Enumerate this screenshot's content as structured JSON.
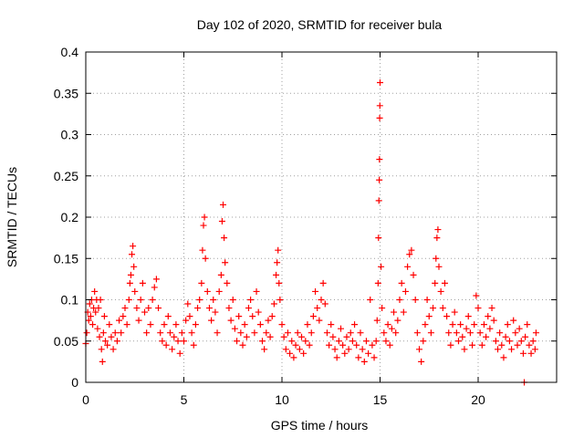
{
  "chart_data": {
    "type": "scatter",
    "title": "Day 102 of 2020, SRMTID for receiver bula",
    "xlabel": "GPS time / hours",
    "ylabel": "SRMTID / TECUs",
    "xlim": [
      0,
      24
    ],
    "ylim": [
      0,
      0.4
    ],
    "x_ticks": [
      0,
      5,
      10,
      15,
      20
    ],
    "x_tick_labels": [
      "0",
      "5",
      "10",
      "15",
      "20"
    ],
    "y_ticks": [
      0,
      0.05,
      0.1,
      0.15,
      0.2,
      0.25,
      0.3,
      0.35,
      0.4
    ],
    "y_tick_labels": [
      "0",
      "0.05",
      "0.1",
      "0.15",
      "0.2",
      "0.25",
      "0.3",
      "0.35",
      "0.4"
    ],
    "grid": true,
    "marker": "+",
    "color": "#ff0000",
    "series": [
      {
        "name": "SRMTID",
        "points": [
          [
            0.0,
            0.047
          ],
          [
            0.05,
            0.06
          ],
          [
            0.1,
            0.085
          ],
          [
            0.15,
            0.075
          ],
          [
            0.2,
            0.095
          ],
          [
            0.25,
            0.08
          ],
          [
            0.3,
            0.1
          ],
          [
            0.35,
            0.07
          ],
          [
            0.4,
            0.09
          ],
          [
            0.45,
            0.11
          ],
          [
            0.5,
            0.085
          ],
          [
            0.55,
            0.1
          ],
          [
            0.6,
            0.065
          ],
          [
            0.65,
            0.09
          ],
          [
            0.7,
            0.055
          ],
          [
            0.75,
            0.1
          ],
          [
            0.8,
            0.04
          ],
          [
            0.85,
            0.025
          ],
          [
            0.9,
            0.06
          ],
          [
            0.95,
            0.08
          ],
          [
            1.0,
            0.05
          ],
          [
            1.1,
            0.045
          ],
          [
            1.2,
            0.07
          ],
          [
            1.3,
            0.055
          ],
          [
            1.4,
            0.04
          ],
          [
            1.5,
            0.06
          ],
          [
            1.6,
            0.05
          ],
          [
            1.7,
            0.075
          ],
          [
            1.8,
            0.06
          ],
          [
            1.9,
            0.08
          ],
          [
            2.0,
            0.09
          ],
          [
            2.1,
            0.07
          ],
          [
            2.2,
            0.1
          ],
          [
            2.25,
            0.12
          ],
          [
            2.3,
            0.13
          ],
          [
            2.35,
            0.155
          ],
          [
            2.4,
            0.165
          ],
          [
            2.45,
            0.14
          ],
          [
            2.5,
            0.11
          ],
          [
            2.6,
            0.09
          ],
          [
            2.7,
            0.075
          ],
          [
            2.8,
            0.1
          ],
          [
            2.9,
            0.12
          ],
          [
            3.0,
            0.085
          ],
          [
            3.1,
            0.06
          ],
          [
            3.2,
            0.09
          ],
          [
            3.3,
            0.07
          ],
          [
            3.4,
            0.1
          ],
          [
            3.5,
            0.115
          ],
          [
            3.6,
            0.125
          ],
          [
            3.7,
            0.09
          ],
          [
            3.8,
            0.06
          ],
          [
            3.9,
            0.05
          ],
          [
            4.0,
            0.07
          ],
          [
            4.1,
            0.045
          ],
          [
            4.2,
            0.08
          ],
          [
            4.3,
            0.06
          ],
          [
            4.4,
            0.04
          ],
          [
            4.5,
            0.055
          ],
          [
            4.6,
            0.07
          ],
          [
            4.7,
            0.05
          ],
          [
            4.8,
            0.035
          ],
          [
            4.9,
            0.06
          ],
          [
            5.0,
            0.05
          ],
          [
            5.1,
            0.075
          ],
          [
            5.2,
            0.095
          ],
          [
            5.3,
            0.08
          ],
          [
            5.4,
            0.06
          ],
          [
            5.5,
            0.045
          ],
          [
            5.6,
            0.07
          ],
          [
            5.7,
            0.09
          ],
          [
            5.8,
            0.1
          ],
          [
            5.9,
            0.12
          ],
          [
            5.95,
            0.16
          ],
          [
            6.0,
            0.19
          ],
          [
            6.05,
            0.2
          ],
          [
            6.1,
            0.15
          ],
          [
            6.2,
            0.11
          ],
          [
            6.3,
            0.09
          ],
          [
            6.4,
            0.075
          ],
          [
            6.5,
            0.1
          ],
          [
            6.6,
            0.085
          ],
          [
            6.7,
            0.06
          ],
          [
            6.8,
            0.11
          ],
          [
            6.9,
            0.13
          ],
          [
            6.95,
            0.195
          ],
          [
            7.0,
            0.215
          ],
          [
            7.05,
            0.175
          ],
          [
            7.1,
            0.145
          ],
          [
            7.2,
            0.12
          ],
          [
            7.3,
            0.09
          ],
          [
            7.4,
            0.075
          ],
          [
            7.5,
            0.1
          ],
          [
            7.6,
            0.065
          ],
          [
            7.7,
            0.05
          ],
          [
            7.8,
            0.08
          ],
          [
            7.9,
            0.06
          ],
          [
            8.0,
            0.045
          ],
          [
            8.1,
            0.07
          ],
          [
            8.2,
            0.055
          ],
          [
            8.3,
            0.09
          ],
          [
            8.4,
            0.1
          ],
          [
            8.5,
            0.08
          ],
          [
            8.6,
            0.06
          ],
          [
            8.7,
            0.11
          ],
          [
            8.8,
            0.085
          ],
          [
            8.9,
            0.07
          ],
          [
            9.0,
            0.05
          ],
          [
            9.1,
            0.04
          ],
          [
            9.2,
            0.06
          ],
          [
            9.3,
            0.075
          ],
          [
            9.4,
            0.055
          ],
          [
            9.5,
            0.08
          ],
          [
            9.6,
            0.095
          ],
          [
            9.7,
            0.13
          ],
          [
            9.75,
            0.145
          ],
          [
            9.8,
            0.16
          ],
          [
            9.85,
            0.12
          ],
          [
            9.9,
            0.1
          ],
          [
            10.0,
            0.07
          ],
          [
            10.1,
            0.055
          ],
          [
            10.2,
            0.04
          ],
          [
            10.3,
            0.06
          ],
          [
            10.4,
            0.035
          ],
          [
            10.5,
            0.05
          ],
          [
            10.6,
            0.03
          ],
          [
            10.7,
            0.045
          ],
          [
            10.8,
            0.06
          ],
          [
            10.9,
            0.04
          ],
          [
            11.0,
            0.055
          ],
          [
            11.1,
            0.035
          ],
          [
            11.2,
            0.05
          ],
          [
            11.3,
            0.07
          ],
          [
            11.4,
            0.045
          ],
          [
            11.5,
            0.06
          ],
          [
            11.6,
            0.08
          ],
          [
            11.7,
            0.11
          ],
          [
            11.8,
            0.09
          ],
          [
            11.9,
            0.075
          ],
          [
            12.0,
            0.1
          ],
          [
            12.1,
            0.12
          ],
          [
            12.2,
            0.095
          ],
          [
            12.3,
            0.06
          ],
          [
            12.4,
            0.045
          ],
          [
            12.5,
            0.07
          ],
          [
            12.6,
            0.055
          ],
          [
            12.7,
            0.04
          ],
          [
            12.8,
            0.03
          ],
          [
            12.9,
            0.05
          ],
          [
            13.0,
            0.065
          ],
          [
            13.1,
            0.045
          ],
          [
            13.2,
            0.035
          ],
          [
            13.3,
            0.055
          ],
          [
            13.4,
            0.04
          ],
          [
            13.5,
            0.06
          ],
          [
            13.6,
            0.05
          ],
          [
            13.7,
            0.07
          ],
          [
            13.8,
            0.045
          ],
          [
            13.9,
            0.03
          ],
          [
            14.0,
            0.06
          ],
          [
            14.1,
            0.04
          ],
          [
            14.2,
            0.025
          ],
          [
            14.3,
            0.05
          ],
          [
            14.4,
            0.035
          ],
          [
            14.5,
            0.1
          ],
          [
            14.6,
            0.045
          ],
          [
            14.7,
            0.03
          ],
          [
            14.8,
            0.05
          ],
          [
            14.85,
            0.075
          ],
          [
            14.9,
            0.12
          ],
          [
            14.92,
            0.175
          ],
          [
            14.94,
            0.22
          ],
          [
            14.96,
            0.245
          ],
          [
            14.97,
            0.27
          ],
          [
            14.98,
            0.32
          ],
          [
            14.99,
            0.335
          ],
          [
            15.0,
            0.363
          ],
          [
            15.05,
            0.14
          ],
          [
            15.1,
            0.09
          ],
          [
            15.2,
            0.06
          ],
          [
            15.3,
            0.05
          ],
          [
            15.4,
            0.07
          ],
          [
            15.5,
            0.045
          ],
          [
            15.6,
            0.065
          ],
          [
            15.7,
            0.085
          ],
          [
            15.8,
            0.06
          ],
          [
            15.9,
            0.075
          ],
          [
            16.0,
            0.1
          ],
          [
            16.1,
            0.12
          ],
          [
            16.2,
            0.085
          ],
          [
            16.3,
            0.11
          ],
          [
            16.4,
            0.14
          ],
          [
            16.5,
            0.155
          ],
          [
            16.6,
            0.16
          ],
          [
            16.7,
            0.13
          ],
          [
            16.8,
            0.1
          ],
          [
            16.9,
            0.06
          ],
          [
            17.0,
            0.04
          ],
          [
            17.1,
            0.025
          ],
          [
            17.2,
            0.05
          ],
          [
            17.3,
            0.07
          ],
          [
            17.4,
            0.1
          ],
          [
            17.5,
            0.08
          ],
          [
            17.6,
            0.06
          ],
          [
            17.7,
            0.09
          ],
          [
            17.8,
            0.12
          ],
          [
            17.85,
            0.15
          ],
          [
            17.9,
            0.175
          ],
          [
            17.95,
            0.185
          ],
          [
            18.0,
            0.14
          ],
          [
            18.1,
            0.11
          ],
          [
            18.2,
            0.09
          ],
          [
            18.3,
            0.12
          ],
          [
            18.4,
            0.08
          ],
          [
            18.5,
            0.06
          ],
          [
            18.6,
            0.045
          ],
          [
            18.7,
            0.07
          ],
          [
            18.8,
            0.085
          ],
          [
            18.9,
            0.06
          ],
          [
            19.0,
            0.05
          ],
          [
            19.1,
            0.07
          ],
          [
            19.2,
            0.055
          ],
          [
            19.3,
            0.04
          ],
          [
            19.4,
            0.065
          ],
          [
            19.5,
            0.08
          ],
          [
            19.6,
            0.06
          ],
          [
            19.7,
            0.045
          ],
          [
            19.8,
            0.07
          ],
          [
            19.9,
            0.105
          ],
          [
            20.0,
            0.09
          ],
          [
            20.1,
            0.06
          ],
          [
            20.2,
            0.045
          ],
          [
            20.3,
            0.07
          ],
          [
            20.4,
            0.055
          ],
          [
            20.5,
            0.08
          ],
          [
            20.6,
            0.065
          ],
          [
            20.7,
            0.09
          ],
          [
            20.8,
            0.075
          ],
          [
            20.9,
            0.05
          ],
          [
            21.0,
            0.04
          ],
          [
            21.1,
            0.06
          ],
          [
            21.2,
            0.045
          ],
          [
            21.3,
            0.03
          ],
          [
            21.4,
            0.055
          ],
          [
            21.5,
            0.07
          ],
          [
            21.6,
            0.05
          ],
          [
            21.7,
            0.04
          ],
          [
            21.8,
            0.075
          ],
          [
            21.9,
            0.06
          ],
          [
            22.0,
            0.045
          ],
          [
            22.1,
            0.065
          ],
          [
            22.2,
            0.05
          ],
          [
            22.3,
            0.035
          ],
          [
            22.35,
            0.0
          ],
          [
            22.4,
            0.055
          ],
          [
            22.5,
            0.07
          ],
          [
            22.6,
            0.045
          ],
          [
            22.7,
            0.035
          ],
          [
            22.8,
            0.05
          ],
          [
            22.9,
            0.04
          ],
          [
            22.95,
            0.06
          ]
        ]
      }
    ]
  }
}
